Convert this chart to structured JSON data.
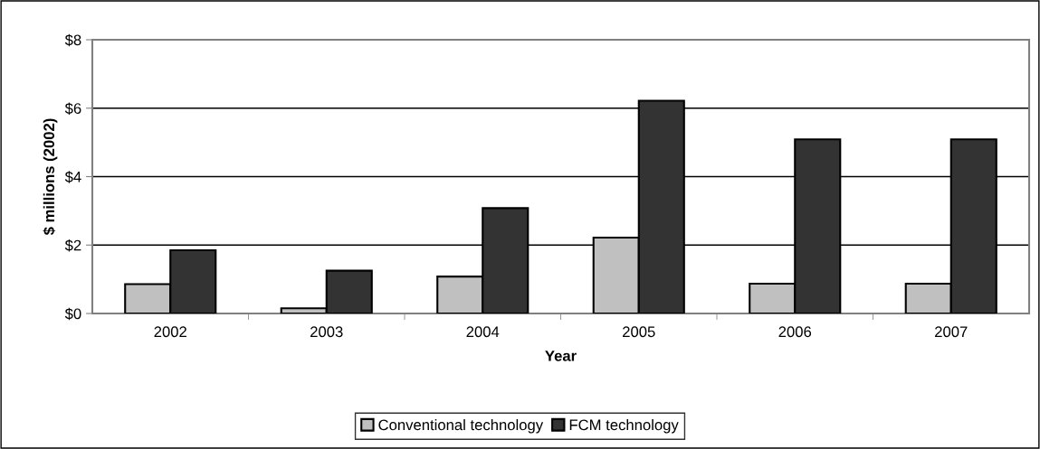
{
  "chart_data": {
    "type": "bar",
    "xlabel": "Year",
    "ylabel": "$ millions (2002)",
    "categories": [
      "2002",
      "2003",
      "2004",
      "2005",
      "2006",
      "2007"
    ],
    "series": [
      {
        "name": "Conventional technology",
        "color": "#c0c0c0",
        "values": [
          0.86,
          0.15,
          1.08,
          2.22,
          0.87,
          0.87
        ]
      },
      {
        "name": "FCM technology",
        "color": "#333333",
        "values": [
          1.85,
          1.25,
          3.08,
          6.22,
          5.09,
          5.09
        ]
      }
    ],
    "ylim": [
      0,
      8
    ],
    "yticks": [
      {
        "value": 0,
        "label": "$0"
      },
      {
        "value": 2,
        "label": "$2"
      },
      {
        "value": 4,
        "label": "$4"
      },
      {
        "value": 6,
        "label": "$6"
      },
      {
        "value": 8,
        "label": "$8"
      }
    ],
    "grid": "y",
    "legend": "bottom"
  }
}
